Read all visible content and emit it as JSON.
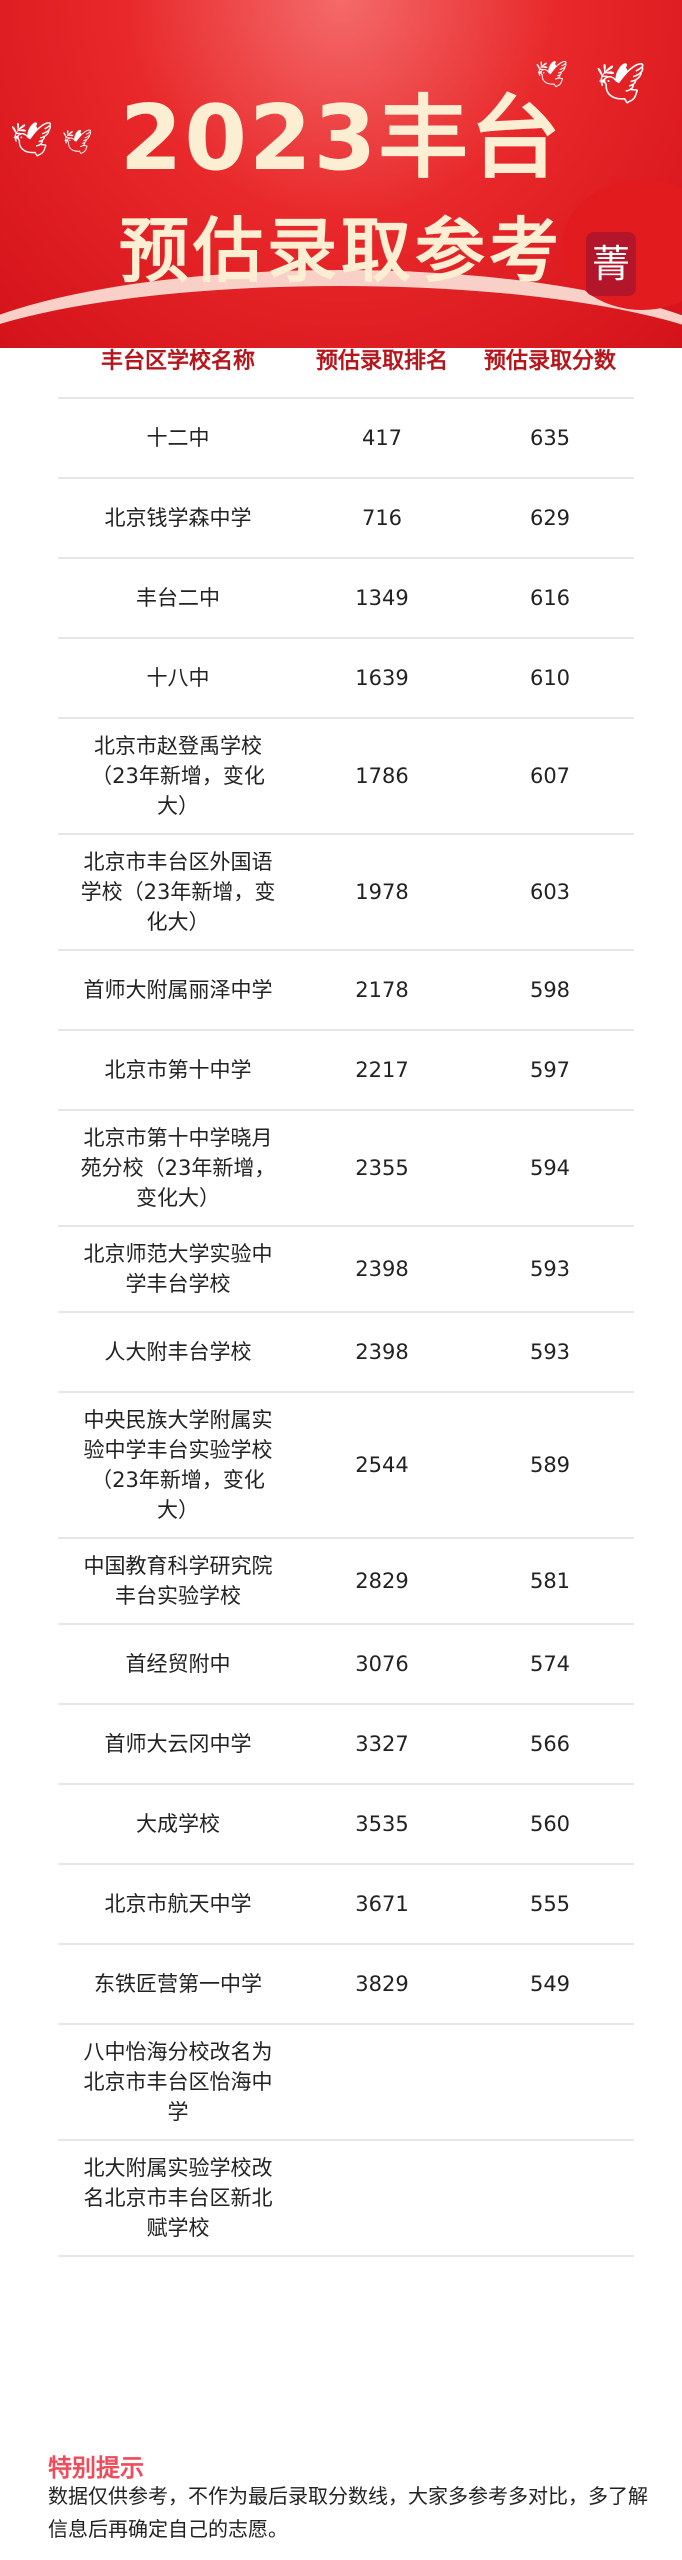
{
  "banner": {
    "title_line1": "2023丰台",
    "title_line2": "预估录取参考",
    "logo_text": "菁"
  },
  "table": {
    "headers": [
      "丰台区学校名称",
      "预估录取排名",
      "预估录取分数"
    ],
    "rows": [
      {
        "name": "十二中",
        "rank": "417",
        "score": "635"
      },
      {
        "name": "北京钱学森中学",
        "rank": "716",
        "score": "629"
      },
      {
        "name": "丰台二中",
        "rank": "1349",
        "score": "616"
      },
      {
        "name": "十八中",
        "rank": "1639",
        "score": "610"
      },
      {
        "name": "北京市赵登禹学校（23年新增，变化大）",
        "rank": "1786",
        "score": "607"
      },
      {
        "name": "北京市丰台区外国语学校（23年新增，变化大）",
        "rank": "1978",
        "score": "603"
      },
      {
        "name": "首师大附属丽泽中学",
        "rank": "2178",
        "score": "598"
      },
      {
        "name": "北京市第十中学",
        "rank": "2217",
        "score": "597"
      },
      {
        "name": "北京市第十中学晓月苑分校（23年新增，变化大）",
        "rank": "2355",
        "score": "594"
      },
      {
        "name": "北京师范大学实验中学丰台学校",
        "rank": "2398",
        "score": "593"
      },
      {
        "name": "人大附丰台学校",
        "rank": "2398",
        "score": "593"
      },
      {
        "name": "中央民族大学附属实验中学丰台实验学校（23年新增，变化大）",
        "rank": "2544",
        "score": "589"
      },
      {
        "name": "中国教育科学研究院丰台实验学校",
        "rank": "2829",
        "score": "581"
      },
      {
        "name": "首经贸附中",
        "rank": "3076",
        "score": "574"
      },
      {
        "name": "首师大云冈中学",
        "rank": "3327",
        "score": "566"
      },
      {
        "name": "大成学校",
        "rank": "3535",
        "score": "560"
      },
      {
        "name": "北京市航天中学",
        "rank": "3671",
        "score": "555"
      },
      {
        "name": "东铁匠营第一中学",
        "rank": "3829",
        "score": "549"
      },
      {
        "name": "八中怡海分校改名为北京市丰台区怡海中学",
        "rank": "",
        "score": ""
      },
      {
        "name": "北大附属实验学校改名北京市丰台区新北赋学校",
        "rank": "",
        "score": ""
      }
    ]
  },
  "note": {
    "title": "特别提示",
    "text": "数据仅供参考，不作为最后录取分数线，大家多参考多对比，多了解信息后再确定自己的志愿。"
  },
  "colors": {
    "banner_red": "#e8282a",
    "header_text": "#b5161c",
    "note_title": "#f04b5b"
  }
}
